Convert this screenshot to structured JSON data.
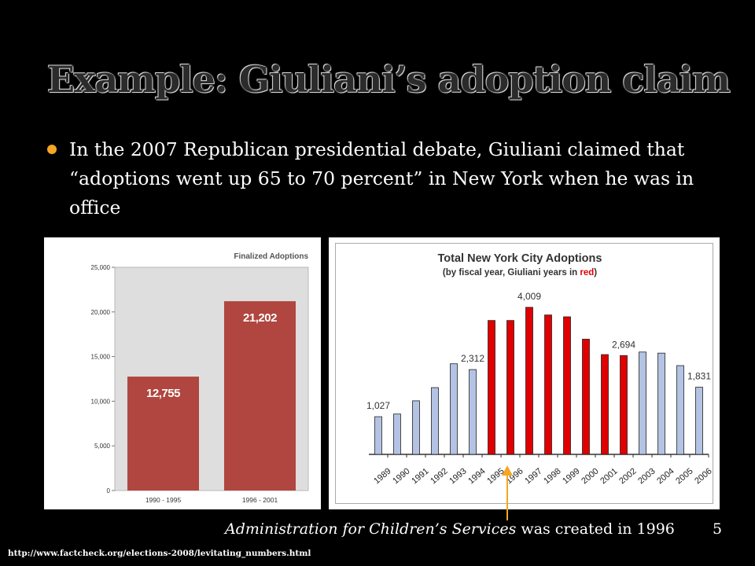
{
  "slide": {
    "title": "Example: Giuliani’s adoption claim",
    "bullet": "In the 2007 Republican presidential debate, Giuliani claimed that “adoptions went up 65 to 70 percent” in New York when he was in office",
    "caption_italic": "Administration for Children’s Services",
    "caption_rest": " was created in 1996",
    "slide_number": "5",
    "source_url": "http://www.factcheck.org/elections-2008/levitating_numbers.html"
  },
  "colors": {
    "bullet": "#f5a623",
    "left_bar": "#b0463f",
    "blue_bar": "#b4c3e3",
    "red_bar": "#e00000",
    "arrow": "#f5a623"
  },
  "chart_data": [
    {
      "type": "bar",
      "title": "Finalized Adoptions",
      "categories": [
        "1990 - 1995",
        "1996 - 2001"
      ],
      "values": [
        12755,
        21202
      ],
      "data_labels": [
        "12,755",
        "21,202"
      ],
      "ylim": [
        0,
        25000
      ],
      "yticks": [
        0,
        5000,
        10000,
        15000,
        20000,
        25000
      ],
      "ytick_labels": [
        "0",
        "5,000",
        "10,000",
        "15,000",
        "20,000",
        "25,000"
      ],
      "grid": false
    },
    {
      "type": "bar",
      "title": "Total New York City Adoptions",
      "subtitle_prefix": "(by fiscal year, Giuliani years in ",
      "subtitle_red": "red",
      "subtitle_suffix": ")",
      "categories": [
        "1989",
        "1990",
        "1991",
        "1992",
        "1993",
        "1994",
        "1995",
        "1996",
        "1997",
        "1998",
        "1999",
        "2000",
        "2001",
        "2002",
        "2003",
        "2004",
        "2005",
        "2006"
      ],
      "values": [
        1027,
        1100,
        1460,
        1820,
        2470,
        2312,
        3650,
        3650,
        4009,
        3800,
        3750,
        3140,
        2720,
        2694,
        2790,
        2760,
        2420,
        1831
      ],
      "giuliani_years": [
        false,
        false,
        false,
        false,
        false,
        false,
        true,
        true,
        true,
        true,
        true,
        true,
        true,
        true,
        false,
        false,
        false,
        false
      ],
      "data_labels": [
        {
          "index": 0,
          "text": "1,027"
        },
        {
          "index": 5,
          "text": "2,312"
        },
        {
          "index": 8,
          "text": "4,009"
        },
        {
          "index": 13,
          "text": "2,694"
        },
        {
          "index": 17,
          "text": "1,831"
        }
      ],
      "ylim": [
        0,
        4500
      ],
      "axes_visible": false,
      "grid": false
    }
  ]
}
